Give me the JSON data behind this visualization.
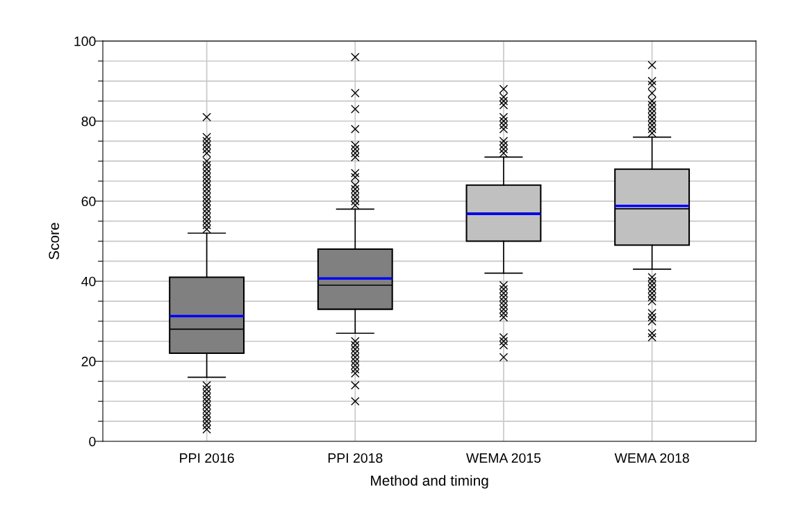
{
  "chart_data": {
    "type": "box",
    "xlabel": "Method and timing",
    "ylabel": "Score",
    "categories": [
      "PPI 2016",
      "PPI 2018",
      "WEMA 2015",
      "WEMA 2018"
    ],
    "colors": [
      "#808080",
      "#808080",
      "#c0c0c0",
      "#c0c0c0"
    ],
    "boxes": [
      {
        "low": 16,
        "q1": 22,
        "median": 28,
        "q3": 41,
        "high": 52,
        "mean": 31.3,
        "outliers": [
          81,
          76,
          75,
          74,
          73,
          72,
          70,
          69,
          68,
          67,
          66,
          65,
          64,
          63,
          62,
          61,
          60,
          59,
          58,
          57,
          56,
          55,
          54,
          53,
          14,
          13,
          12,
          11,
          10,
          9,
          8,
          7,
          6,
          5,
          4,
          3
        ]
      },
      {
        "low": 27,
        "q1": 33,
        "median": 39,
        "q3": 48,
        "high": 58,
        "mean": 40.7,
        "outliers": [
          96,
          87,
          83,
          78,
          74,
          73,
          72,
          71,
          67,
          66,
          64,
          63,
          62,
          61,
          60,
          59,
          25,
          24,
          23,
          22,
          21,
          20,
          19,
          18,
          17,
          14,
          10
        ]
      },
      {
        "low": 42,
        "q1": 50,
        "median": 57,
        "q3": 64,
        "high": 71,
        "mean": 56.8,
        "outliers": [
          88,
          86,
          85,
          84,
          81,
          80,
          79,
          78,
          75,
          74,
          73,
          72,
          39,
          38,
          37,
          36,
          35,
          34,
          33,
          32,
          31,
          26,
          25,
          24,
          21
        ]
      },
      {
        "low": 43,
        "q1": 49,
        "median": 58.1,
        "q3": 68,
        "high": 76,
        "mean": 58.8,
        "outliers": [
          94,
          90,
          89,
          87,
          85,
          84,
          83,
          82,
          81,
          80,
          79,
          78,
          77,
          41,
          40,
          39,
          38,
          37,
          36,
          35,
          32,
          31,
          30,
          27,
          26
        ]
      }
    ],
    "ylim": [
      0,
      100
    ],
    "yticks": [
      0,
      {
        "value": 5,
        "label": null
      },
      {
        "value": 10,
        "label": null
      },
      {
        "value": 15,
        "label": null
      },
      20,
      {
        "value": 25,
        "label": null
      },
      {
        "value": 30,
        "label": null
      },
      {
        "value": 35,
        "label": null
      },
      40,
      {
        "value": 45,
        "label": null
      },
      {
        "value": 50,
        "label": null
      },
      {
        "value": 55,
        "label": null
      },
      60,
      {
        "value": 65,
        "label": null
      },
      {
        "value": 70,
        "label": null
      },
      {
        "value": 75,
        "label": null
      },
      80,
      {
        "value": 85,
        "label": null
      },
      {
        "value": 90,
        "label": null
      },
      {
        "value": 95,
        "label": null
      },
      100
    ],
    "grid": true,
    "marker": "cross"
  }
}
